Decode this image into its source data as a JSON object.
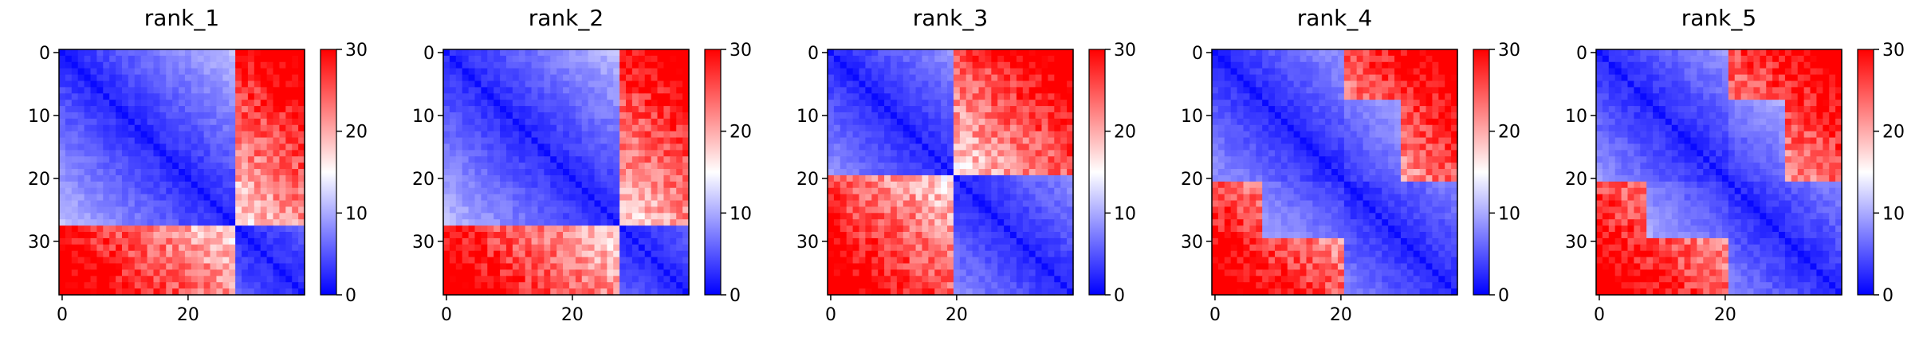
{
  "chart_data": {
    "type": "heatmap",
    "colormap": "bwr",
    "grid": false,
    "n": 39,
    "panels": [
      {
        "title": "rank_1",
        "cmin": 0,
        "cmax": 30,
        "xticks": [
          0,
          20
        ],
        "yticks": [
          0,
          10,
          20,
          30
        ],
        "cbar_ticks": [
          0,
          10,
          20,
          30
        ],
        "domains": [
          [
            0,
            27
          ],
          [
            28,
            38
          ]
        ],
        "mid_domain": null
      },
      {
        "title": "rank_2",
        "cmin": 0,
        "cmax": 30,
        "xticks": [
          0,
          20
        ],
        "yticks": [
          0,
          10,
          20,
          30
        ],
        "cbar_ticks": [
          0,
          10,
          20,
          30
        ],
        "domains": [
          [
            0,
            27
          ],
          [
            28,
            38
          ]
        ],
        "mid_domain": null
      },
      {
        "title": "rank_3",
        "cmin": 0,
        "cmax": 30,
        "xticks": [
          0,
          20
        ],
        "yticks": [
          0,
          10,
          20,
          30
        ],
        "cbar_ticks": [
          0,
          10,
          20,
          30
        ],
        "domains": [
          [
            0,
            19
          ],
          [
            20,
            38
          ]
        ],
        "mid_domain": null
      },
      {
        "title": "rank_4",
        "cmin": 0,
        "cmax": 30,
        "xticks": [
          0,
          20
        ],
        "yticks": [
          0,
          10,
          20,
          30
        ],
        "cbar_ticks": [
          0,
          10,
          20,
          30
        ],
        "domains": [
          [
            0,
            20
          ],
          [
            21,
            38
          ]
        ],
        "mid_domain": [
          8,
          29
        ]
      },
      {
        "title": "rank_5",
        "cmin": 0,
        "cmax": 30,
        "xticks": [
          0,
          20
        ],
        "yticks": [
          0,
          10,
          20,
          30
        ],
        "cbar_ticks": [
          0,
          10,
          20,
          30
        ],
        "domains": [
          [
            0,
            20
          ],
          [
            21,
            38
          ]
        ],
        "mid_domain": [
          8,
          29
        ]
      }
    ]
  }
}
